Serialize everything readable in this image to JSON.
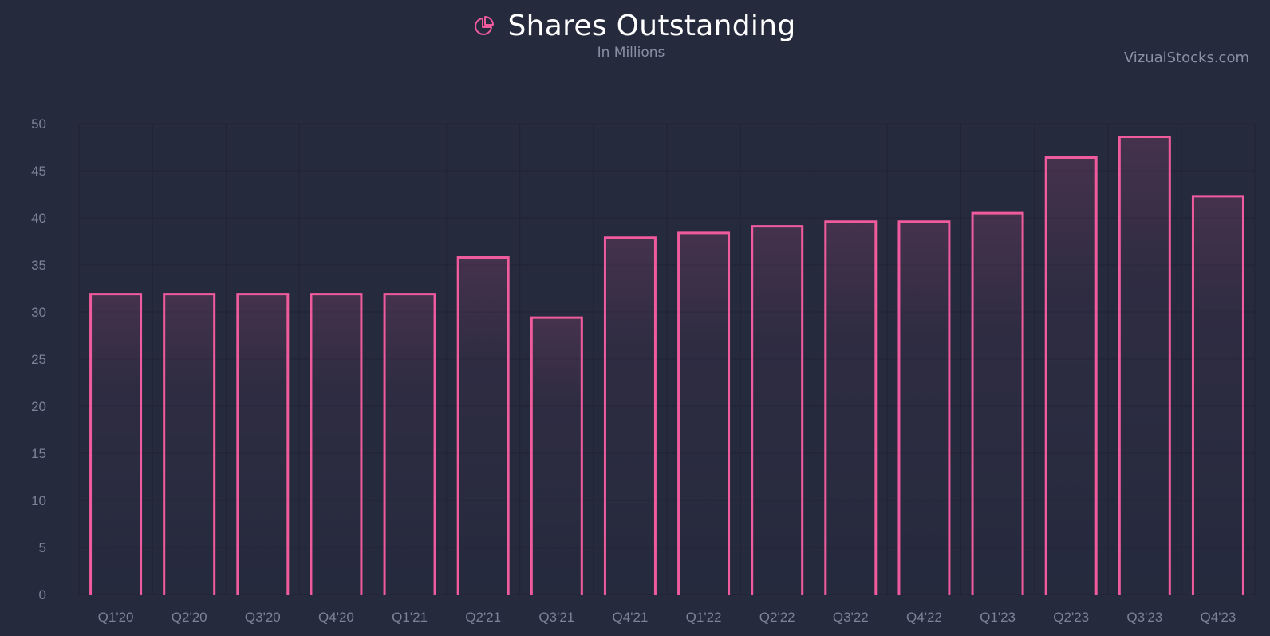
{
  "header": {
    "title": "Shares Outstanding",
    "subtitle": "In Millions",
    "icon": "pie-chart-icon",
    "watermark": "VizualStocks.com"
  },
  "colors": {
    "background": "#252a3d",
    "bar_stroke": "#ef5b9c",
    "grid": "#1f2334",
    "tick_label": "#7d8296"
  },
  "chart_data": {
    "type": "bar",
    "title": "Shares Outstanding",
    "subtitle": "In Millions",
    "xlabel": "",
    "ylabel": "",
    "ylim": [
      0,
      50
    ],
    "yticks": [
      0,
      5,
      10,
      15,
      20,
      25,
      30,
      35,
      40,
      45,
      50
    ],
    "grid": true,
    "legend": "none",
    "categories": [
      "Q1'20",
      "Q2'20",
      "Q3'20",
      "Q4'20",
      "Q1'21",
      "Q2'21",
      "Q3'21",
      "Q4'21",
      "Q1'22",
      "Q2'22",
      "Q3'22",
      "Q4'22",
      "Q1'23",
      "Q2'23",
      "Q3'23",
      "Q4'23"
    ],
    "values": [
      31.9,
      31.9,
      31.9,
      31.9,
      31.9,
      35.8,
      29.4,
      37.9,
      38.4,
      39.1,
      39.6,
      39.6,
      40.5,
      46.4,
      48.6,
      42.3
    ]
  }
}
